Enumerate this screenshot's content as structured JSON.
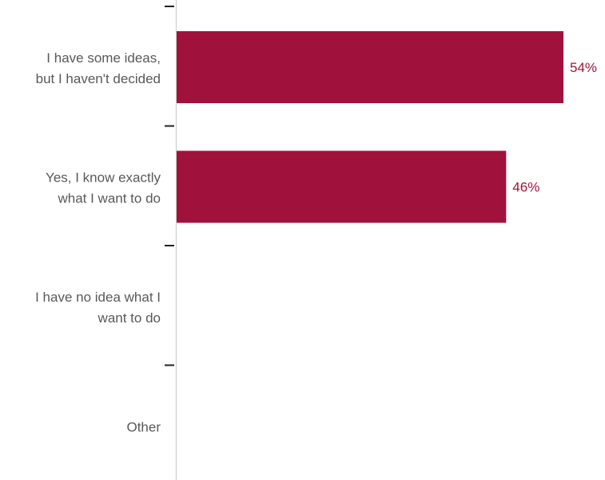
{
  "chart_data": {
    "type": "bar",
    "orientation": "horizontal",
    "categories": [
      [
        "I have some ideas,",
        "but I haven't decided"
      ],
      [
        "Yes, I know exactly",
        "what I want to do"
      ],
      [
        "I have no idea what I",
        "want to do"
      ],
      [
        "Other"
      ]
    ],
    "values": [
      54,
      46,
      null,
      null
    ],
    "value_labels": [
      "54%",
      "46%",
      "",
      ""
    ],
    "xlim": [
      0,
      60
    ],
    "grid": false,
    "legend": "none",
    "colors": {
      "bar": "#a0123c",
      "value_label": "#a0123c",
      "category_label": "#595959",
      "axis": "#cfcfcf",
      "tick": "#222222"
    }
  }
}
